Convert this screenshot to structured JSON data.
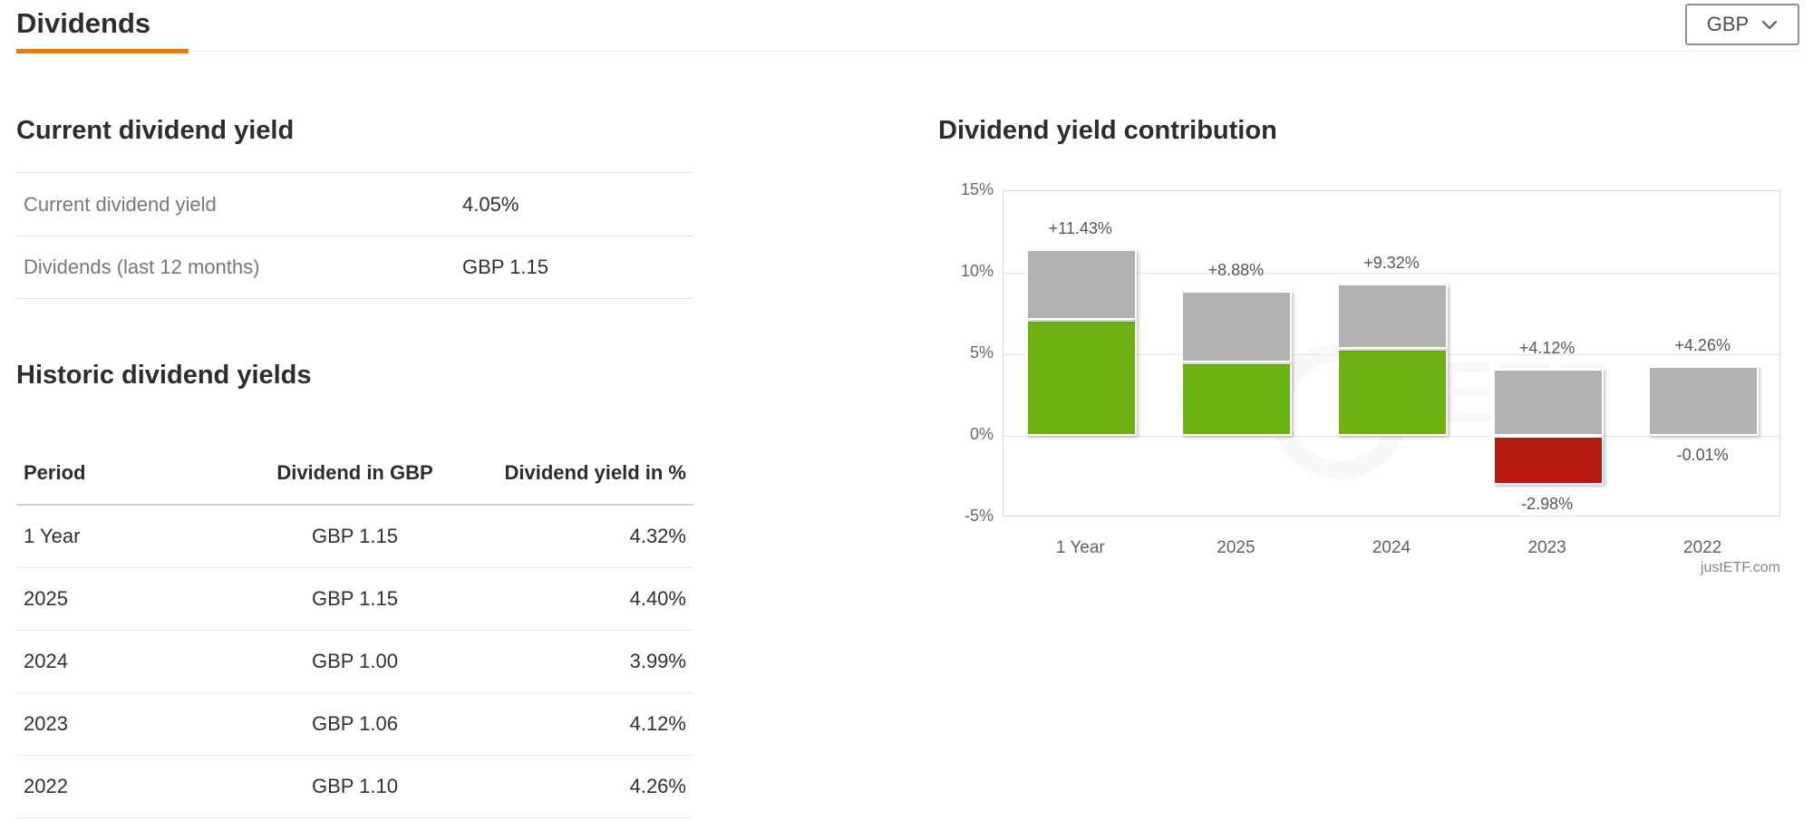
{
  "page": {
    "title": "Dividends"
  },
  "currency_selector": {
    "value": "GBP"
  },
  "current_yield_section": {
    "heading": "Current dividend yield",
    "rows": [
      {
        "label": "Current dividend yield",
        "value": "4.05%"
      },
      {
        "label": "Dividends (last 12 months)",
        "value": "GBP 1.15"
      }
    ]
  },
  "historic_section": {
    "heading": "Historic dividend yields",
    "columns": [
      "Period",
      "Dividend in GBP",
      "Dividend yield in %"
    ],
    "rows": [
      {
        "period": "1 Year",
        "dividend": "GBP 1.15",
        "yield": "4.32%"
      },
      {
        "period": "2025",
        "dividend": "GBP 1.15",
        "yield": "4.40%"
      },
      {
        "period": "2024",
        "dividend": "GBP 1.00",
        "yield": "3.99%"
      },
      {
        "period": "2023",
        "dividend": "GBP 1.06",
        "yield": "4.12%"
      },
      {
        "period": "2022",
        "dividend": "GBP 1.10",
        "yield": "4.26%"
      }
    ]
  },
  "chart": {
    "heading": "Dividend yield contribution",
    "attribution": "justETF.com",
    "watermark": "ETF"
  },
  "chart_data": {
    "type": "bar",
    "stacked": true,
    "title": "Dividend yield contribution",
    "categories": [
      "1 Year",
      "2025",
      "2024",
      "2023",
      "2022"
    ],
    "series": [
      {
        "name": "price-return-positive",
        "color": "#6cb211",
        "values": [
          7.11,
          4.48,
          5.33,
          0,
          0
        ]
      },
      {
        "name": "dividend-yield",
        "color": "#b2b2b2",
        "values": [
          4.32,
          4.4,
          3.99,
          4.12,
          4.26
        ]
      },
      {
        "name": "price-return-negative",
        "color": "#b61a10",
        "values": [
          0,
          0,
          0,
          -2.98,
          -0.01
        ]
      }
    ],
    "totals_labels": [
      "+11.43%",
      "+8.88%",
      "+9.32%",
      "+4.12%",
      "+4.26%"
    ],
    "negative_labels": [
      null,
      null,
      null,
      "-2.98%",
      "-0.01%"
    ],
    "ylim": [
      -5,
      15
    ],
    "yticks": [
      "15%",
      "10%",
      "5%",
      "0%",
      "-5%"
    ],
    "ytick_values": [
      15,
      10,
      5,
      0,
      -5
    ],
    "grid": true,
    "legend": "none",
    "xlabel": "",
    "ylabel": ""
  }
}
